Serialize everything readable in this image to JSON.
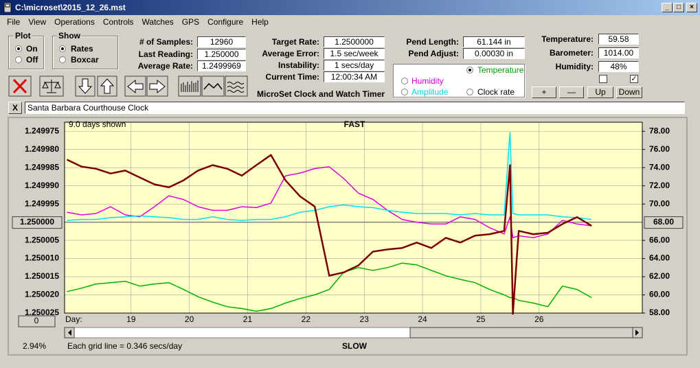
{
  "window": {
    "title": "C:\\microset\\2015_12_26.mst"
  },
  "menu": [
    "File",
    "View",
    "Operations",
    "Controls",
    "Watches",
    "GPS",
    "Configure",
    "Help"
  ],
  "plot_group": {
    "title": "Plot",
    "options": [
      "On",
      "Off"
    ]
  },
  "show_group": {
    "title": "Show",
    "options": [
      "Rates",
      "Boxcar"
    ]
  },
  "fields": [
    [
      {
        "label": "# of Samples:",
        "value": "12960"
      },
      {
        "label": "Last Reading:",
        "value": "1.250000"
      },
      {
        "label": "Average Rate:",
        "value": "1.2499969"
      }
    ],
    [
      {
        "label": "Target Rate:",
        "value": "1.2500000"
      },
      {
        "label": "Average Error:",
        "value": "1.5 sec/week"
      },
      {
        "label": "Instability:",
        "value": "1 secs/day"
      },
      {
        "label": "Current Time:",
        "value": "12:00:34 AM"
      }
    ],
    [
      {
        "label": "Pend Length:",
        "value": "61.144 in"
      },
      {
        "label": "Pend Adjust:",
        "value": "0.00030 in"
      }
    ],
    [
      {
        "label": "Temperature:",
        "value": "59.58"
      },
      {
        "label": "Barometer:",
        "value": "1014.00"
      },
      {
        "label": "Humidity:",
        "value": "48%"
      }
    ]
  ],
  "panel_title": "MicroSet Clock and Watch Timer",
  "buttons": [
    "+",
    "—",
    "Up",
    "Down"
  ],
  "clock_name": "Santa Barbara Courthouse Clock",
  "chart_data": {
    "type": "line",
    "days_shown": "9.0 days shown",
    "top_label": "FAST",
    "bottom_label": "SLOW",
    "x_label": "Day:",
    "grid_note": "Each grid line = 0.346 secs/day",
    "status": "2.94%",
    "offset_box": "0",
    "x": [
      17.9,
      18.15,
      18.4,
      18.65,
      18.9,
      19.15,
      19.4,
      19.65,
      19.9,
      20.15,
      20.4,
      20.65,
      20.9,
      21.15,
      21.4,
      21.65,
      21.9,
      22.15,
      22.4,
      22.65,
      22.9,
      23.15,
      23.4,
      23.65,
      23.9,
      24.15,
      24.4,
      24.65,
      24.9,
      25.15,
      25.4,
      25.5,
      25.55,
      25.65,
      25.9,
      26.15,
      26.4,
      26.65,
      26.9
    ],
    "xlim": [
      17.86,
      27.77
    ],
    "xticks": [
      19,
      20,
      21,
      22,
      23,
      24,
      25,
      26
    ],
    "ylim": [
      1.250025,
      1.2499725
    ],
    "yticks": [
      1.249975,
      {
        "value": 1.24998,
        "label": "1.249980"
      },
      1.249985,
      {
        "value": 1.24999,
        "label": "1.249990"
      },
      1.249995,
      1.250005,
      {
        "value": 1.25001,
        "label": "1.250010"
      },
      1.250015,
      {
        "value": 1.25002,
        "label": "1.250020"
      },
      1.250025
    ],
    "reference": {
      "value": 1.25,
      "label": "1.250000"
    },
    "y2lim": [
      58,
      79
    ],
    "y2ticks": [
      {
        "value": 78,
        "label": "78.00"
      },
      {
        "value": 76,
        "label": "76.00"
      },
      {
        "value": 74,
        "label": "74.00"
      },
      {
        "value": 72,
        "label": "72.00"
      },
      {
        "value": 70,
        "label": "70.00"
      },
      {
        "value": 66,
        "label": "66.00"
      },
      {
        "value": 64,
        "label": "64.00"
      },
      {
        "value": 62,
        "label": "62.00"
      },
      {
        "value": 60,
        "label": "60.00"
      },
      {
        "value": 58,
        "label": "58.00"
      }
    ],
    "y2_reference": {
      "value": 68,
      "label": "68.00"
    },
    "grid": true,
    "series": [
      {
        "name": "Clock rate",
        "color": "#7a0000",
        "axis": "y",
        "values": [
          1.2499828,
          1.2499847,
          1.2499853,
          1.2499866,
          1.2499858,
          1.2499877,
          1.2499896,
          1.2499904,
          1.2499885,
          1.2499858,
          1.2499843,
          1.2499853,
          1.2499872,
          1.2499843,
          1.2499815,
          1.2499885,
          1.2499929,
          1.2499957,
          1.2500147,
          1.2500138,
          1.2500119,
          1.2500081,
          1.2500075,
          1.2500071,
          1.2500056,
          1.2500071,
          1.2500043,
          1.2500056,
          1.2500037,
          1.2500033,
          1.2500024,
          1.2499843,
          1.2500252,
          1.2500024,
          1.2500033,
          1.2500029,
          1.2500005,
          1.2499986,
          1.250001
        ]
      },
      {
        "name": "Temperature",
        "color": "#00b000",
        "axis": "y2",
        "values": [
          60.36,
          60.74,
          61.2,
          61.35,
          61.5,
          60.97,
          61.2,
          61.35,
          60.6,
          59.8,
          59.2,
          58.7,
          58.5,
          58.2,
          58.5,
          59.1,
          59.6,
          60.0,
          60.6,
          62.5,
          63.0,
          62.7,
          63.0,
          63.5,
          63.3,
          62.7,
          62.1,
          61.7,
          61.35,
          60.6,
          60.0,
          59.7,
          59.7,
          59.4,
          59.1,
          58.7,
          60.97,
          60.6,
          59.7
        ]
      },
      {
        "name": "Humidity",
        "color": "#e000e0",
        "axis": "y2",
        "values": [
          69.1,
          68.8,
          68.95,
          69.7,
          68.8,
          68.6,
          69.7,
          70.9,
          70.5,
          69.7,
          69.3,
          69.3,
          69.7,
          69.6,
          70.1,
          73.1,
          73.4,
          73.9,
          74.1,
          72.8,
          71.2,
          70.5,
          69.3,
          68.3,
          68.0,
          67.8,
          67.8,
          68.6,
          68.3,
          67.4,
          66.7,
          68.6,
          66.3,
          66.5,
          66.3,
          66.7,
          68.2,
          67.8,
          67.6
        ]
      },
      {
        "name": "Amplitude",
        "color": "#00e0f0",
        "axis": "y2",
        "values": [
          68.2,
          68.3,
          68.3,
          68.5,
          68.6,
          68.7,
          68.6,
          68.5,
          68.3,
          68.3,
          68.6,
          68.3,
          68.2,
          68.3,
          68.3,
          68.6,
          69.1,
          69.3,
          69.7,
          69.9,
          69.7,
          69.6,
          69.3,
          69.1,
          68.95,
          68.95,
          68.95,
          68.8,
          68.95,
          68.8,
          68.8,
          77.9,
          68.95,
          68.8,
          68.8,
          68.8,
          68.6,
          68.5,
          68.3
        ]
      }
    ]
  }
}
